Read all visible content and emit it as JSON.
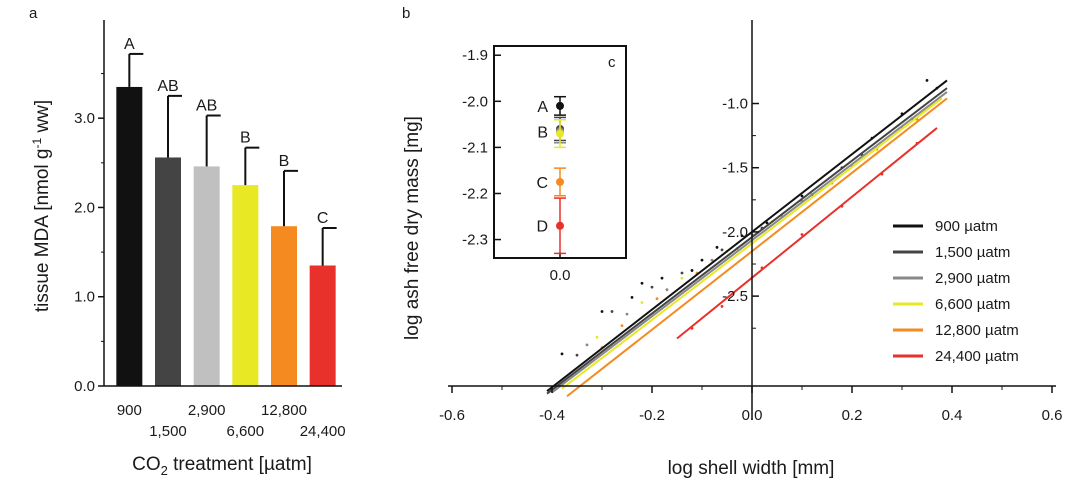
{
  "chart_data": [
    {
      "panel": "a",
      "type": "bar",
      "ylabel_parts": [
        "tissue MDA [nmol g",
        "-1",
        " ww]"
      ],
      "xlabel_parts": [
        "CO",
        "2",
        " treatment [µatm]"
      ],
      "categories": [
        "900",
        "1,500",
        "2,900",
        "6,600",
        "12,800",
        "24,400"
      ],
      "values": [
        3.35,
        2.56,
        2.46,
        2.25,
        1.79,
        1.35
      ],
      "errors": [
        0.37,
        0.69,
        0.57,
        0.42,
        0.62,
        0.42
      ],
      "letters": [
        "A",
        "AB",
        "AB",
        "B",
        "B",
        "C"
      ],
      "colors": [
        "#111111",
        "#444444",
        "#c0c0c0",
        "#e8e825",
        "#f48a20",
        "#e8312a"
      ],
      "ylim": [
        0,
        4.1
      ],
      "yticks": [
        0.0,
        1.0,
        2.0,
        3.0
      ],
      "ytick_labels": [
        "0.0",
        "1.0",
        "2.0",
        "3.0"
      ]
    },
    {
      "panel": "b",
      "type": "scatter",
      "xlabel": "log shell width [mm]",
      "ylabel": "log ash free dry mass [mg]",
      "xlim": [
        -0.6,
        0.6
      ],
      "ylim": [
        -3.2,
        -0.7
      ],
      "xticks": [
        -0.6,
        -0.4,
        -0.2,
        0.0,
        0.2,
        0.4,
        0.6
      ],
      "xtick_labels": [
        "-0.6",
        "-0.4",
        "-0.2",
        "0.0",
        "0.2",
        "0.4",
        "0.6"
      ],
      "yticks": [
        -1.0,
        -1.5,
        -2.0,
        -2.5
      ],
      "ytick_labels": [
        "-1.0",
        "-1.5",
        "-2.0",
        "-2.5"
      ],
      "series": [
        {
          "name": "900 µatm",
          "color": "#111111",
          "line_x": [
            -0.41,
            0.39
          ],
          "line_y": [
            -3.24,
            -0.82
          ],
          "points": [
            [
              -0.38,
              -2.95
            ],
            [
              -0.3,
              -2.62
            ],
            [
              -0.24,
              -2.51
            ],
            [
              -0.22,
              -2.4
            ],
            [
              -0.18,
              -2.36
            ],
            [
              -0.12,
              -2.3
            ],
            [
              -0.1,
              -2.22
            ],
            [
              -0.07,
              -2.12
            ],
            [
              -0.02,
              -2.03
            ],
            [
              0.03,
              -1.93
            ],
            [
              0.1,
              -1.72
            ],
            [
              0.18,
              -1.5
            ],
            [
              0.24,
              -1.27
            ],
            [
              0.3,
              -1.08
            ],
            [
              0.35,
              -0.82
            ],
            [
              0.37,
              -0.88
            ]
          ]
        },
        {
          "name": "1,500 µatm",
          "color": "#444444",
          "line_x": [
            -0.41,
            0.39
          ],
          "line_y": [
            -3.26,
            -0.88
          ],
          "points": [
            [
              -0.35,
              -2.96
            ],
            [
              -0.28,
              -2.62
            ],
            [
              -0.2,
              -2.43
            ],
            [
              -0.14,
              -2.32
            ],
            [
              -0.06,
              -2.14
            ],
            [
              0.02,
              -1.97
            ],
            [
              0.12,
              -1.71
            ],
            [
              0.22,
              -1.4
            ],
            [
              0.32,
              -1.12
            ]
          ]
        },
        {
          "name": "2,900 µatm",
          "color": "#888888",
          "line_x": [
            -0.4,
            0.39
          ],
          "line_y": [
            -3.25,
            -0.91
          ],
          "points": [
            [
              -0.33,
              -2.88
            ],
            [
              -0.25,
              -2.64
            ],
            [
              -0.17,
              -2.45
            ],
            [
              -0.08,
              -2.22
            ],
            [
              0.0,
              -2.02
            ],
            [
              0.1,
              -1.76
            ],
            [
              0.2,
              -1.49
            ],
            [
              0.3,
              -1.19
            ]
          ]
        },
        {
          "name": "6,600 µatm",
          "color": "#e8e825",
          "line_x": [
            -0.38,
            0.38
          ],
          "line_y": [
            -3.22,
            -0.96
          ],
          "points": [
            [
              -0.31,
              -2.82
            ],
            [
              -0.22,
              -2.55
            ],
            [
              -0.14,
              -2.36
            ],
            [
              -0.05,
              -2.15
            ],
            [
              0.04,
              -1.92
            ],
            [
              0.14,
              -1.67
            ],
            [
              0.25,
              -1.36
            ],
            [
              0.33,
              -1.13
            ]
          ]
        },
        {
          "name": "12,800 µatm",
          "color": "#f48a20",
          "line_x": [
            -0.37,
            0.39
          ],
          "line_y": [
            -3.28,
            -0.96
          ],
          "points": [
            [
              -0.3,
              -2.9
            ],
            [
              -0.26,
              -2.73
            ],
            [
              -0.19,
              -2.52
            ],
            [
              -0.11,
              -2.32
            ],
            [
              -0.03,
              -2.13
            ],
            [
              0.06,
              -1.88
            ],
            [
              0.16,
              -1.62
            ],
            [
              0.25,
              -1.35
            ],
            [
              0.33,
              -1.12
            ]
          ]
        },
        {
          "name": "24,400 µatm",
          "color": "#e8312a",
          "line_x": [
            -0.15,
            0.37
          ],
          "line_y": [
            -2.83,
            -1.19
          ],
          "points": [
            [
              -0.12,
              -2.75
            ],
            [
              -0.06,
              -2.58
            ],
            [
              0.02,
              -2.28
            ],
            [
              0.1,
              -2.02
            ],
            [
              0.18,
              -1.8
            ],
            [
              0.26,
              -1.55
            ],
            [
              0.33,
              -1.31
            ]
          ]
        }
      ],
      "legend_placement": "lower-right"
    },
    {
      "panel": "c",
      "type": "scatter",
      "ylim": [
        -2.34,
        -1.88
      ],
      "yticks": [
        -1.9,
        -2.0,
        -2.1,
        -2.2,
        -2.3
      ],
      "ytick_labels": [
        "-1.9",
        "-2.0",
        "-2.1",
        "-2.2",
        "-2.3"
      ],
      "xticks": [
        0.0
      ],
      "xtick_labels": [
        "0.0"
      ],
      "points": [
        {
          "letter": "A",
          "value": -2.01,
          "error": 0.02,
          "color": "#111111"
        },
        {
          "letter": "",
          "value": -2.06,
          "error": 0.025,
          "color": "#444444"
        },
        {
          "letter": "B",
          "value": -2.065,
          "error": 0.025,
          "color": "#888888"
        },
        {
          "letter": "",
          "value": -2.07,
          "error": 0.03,
          "color": "#e8e825"
        },
        {
          "letter": "C",
          "value": -2.175,
          "error": 0.03,
          "color": "#f48a20"
        },
        {
          "letter": "D",
          "value": -2.27,
          "error": 0.06,
          "color": "#e8312a"
        }
      ]
    }
  ]
}
